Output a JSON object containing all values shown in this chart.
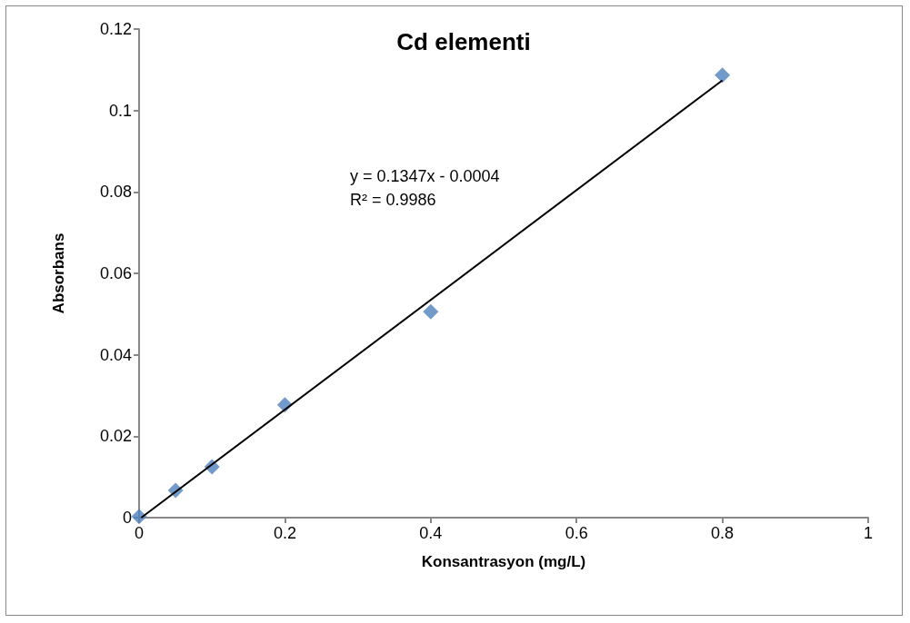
{
  "chart_data": {
    "type": "scatter",
    "title": "Cd elementi",
    "xlabel": "Konsantrasyon (mg/L)",
    "ylabel": "Absorbans",
    "x": [
      0,
      0.05,
      0.1,
      0.2,
      0.4,
      0.8
    ],
    "series": [
      {
        "color": "#4f81bd",
        "marker": "diamond",
        "values": [
          0.0003,
          0.0067,
          0.0125,
          0.0277,
          0.0506,
          0.1087
        ]
      },
      {
        "type": "line",
        "color": "#000000",
        "marker": "none",
        "x": [
          0.003,
          0.8
        ],
        "values": [
          0,
          0.1074
        ]
      }
    ],
    "xlim": [
      0,
      1
    ],
    "xticks": [
      0,
      0.2,
      0.4,
      0.6,
      0.8,
      1
    ],
    "ylim": [
      0,
      0.12
    ],
    "yticks": [
      0,
      0.02,
      0.04,
      0.06,
      0.08,
      0.1,
      0.12
    ],
    "grid": false,
    "annotations": [
      "y = 0.1347x - 0.0004",
      "R² = 0.9986"
    ]
  }
}
